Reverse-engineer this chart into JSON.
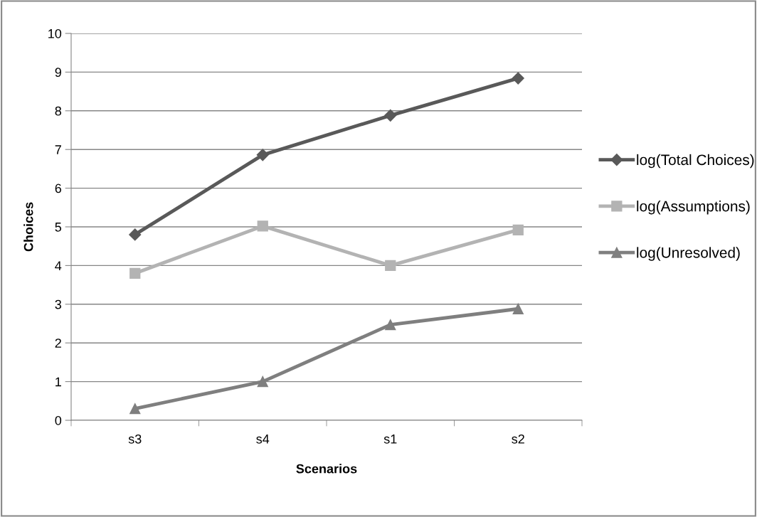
{
  "chart_data": {
    "type": "line",
    "xlabel": "Scenarios",
    "ylabel": "Choices",
    "categories": [
      "s3",
      "s4",
      "s1",
      "s2"
    ],
    "series": [
      {
        "name": "log(Total Choices)",
        "color": "#595959",
        "marker": "diamond",
        "values": [
          4.8,
          6.86,
          7.88,
          8.84
        ]
      },
      {
        "name": "log(Assumptions)",
        "color": "#b3b3b3",
        "marker": "square",
        "values": [
          3.8,
          5.02,
          4.0,
          4.92
        ]
      },
      {
        "name": "log(Unresolved)",
        "color": "#7f7f7f",
        "marker": "triangle",
        "values": [
          0.3,
          1.0,
          2.47,
          2.88
        ]
      }
    ],
    "ylim": [
      0,
      10
    ],
    "yticks": [
      0,
      1,
      2,
      3,
      4,
      5,
      6,
      7,
      8,
      9,
      10
    ],
    "grid": "y",
    "legend": "right",
    "line_style": "solid"
  }
}
